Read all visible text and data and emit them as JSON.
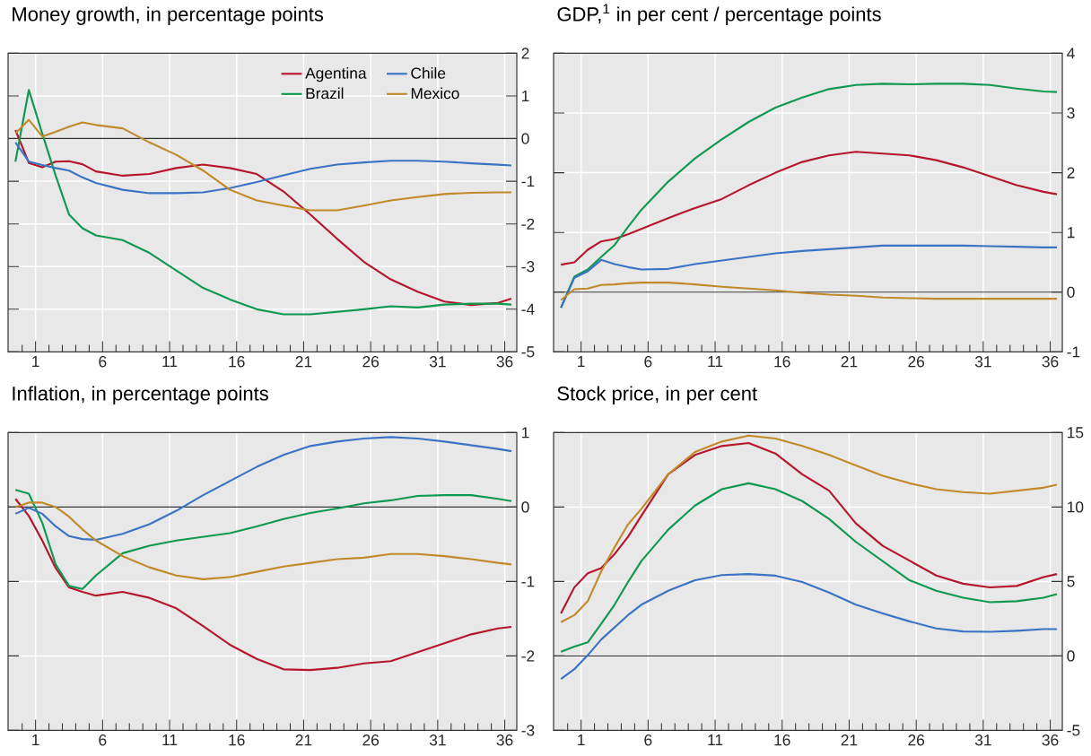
{
  "chart_data": [
    {
      "type": "line",
      "title": "Money growth, in percentage points",
      "legend": "top right",
      "grid": true,
      "x": [
        -0.5,
        0.5,
        1.5,
        2.5,
        3.5,
        4.5,
        5.5,
        7.5,
        9.5,
        11.5,
        13.5,
        15.5,
        17.5,
        19.5,
        21.5,
        23.5,
        25.5,
        27.5,
        29.5,
        31.5,
        33.5,
        35.5,
        36.5
      ],
      "xlim": [
        -1.05,
        36.9
      ],
      "ylim": [
        -5,
        2
      ],
      "yticks": [
        -5,
        -4,
        -3,
        -2,
        -1,
        0,
        1,
        2
      ],
      "xticks": [
        {
          "value": 0,
          "label": null
        },
        1,
        {
          "value": 2,
          "label": null
        },
        {
          "value": 3,
          "label": null
        },
        {
          "value": 4,
          "label": null
        },
        {
          "value": 5,
          "label": null
        },
        6,
        {
          "value": 7,
          "label": null
        },
        {
          "value": 8,
          "label": null
        },
        {
          "value": 9,
          "label": null
        },
        {
          "value": 10,
          "label": null
        },
        11,
        {
          "value": 12,
          "label": null
        },
        {
          "value": 13,
          "label": null
        },
        {
          "value": 14,
          "label": null
        },
        {
          "value": 15,
          "label": null
        },
        16,
        {
          "value": 17,
          "label": null
        },
        {
          "value": 18,
          "label": null
        },
        {
          "value": 19,
          "label": null
        },
        {
          "value": 20,
          "label": null
        },
        21,
        {
          "value": 22,
          "label": null
        },
        {
          "value": 23,
          "label": null
        },
        {
          "value": 24,
          "label": null
        },
        {
          "value": 25,
          "label": null
        },
        26,
        {
          "value": 27,
          "label": null
        },
        {
          "value": 28,
          "label": null
        },
        {
          "value": 29,
          "label": null
        },
        {
          "value": 30,
          "label": null
        },
        31,
        {
          "value": 32,
          "label": null
        },
        {
          "value": 33,
          "label": null
        },
        {
          "value": 34,
          "label": null
        },
        {
          "value": 35,
          "label": null
        },
        36
      ],
      "ref_lines": [
        {
          "axis": "y",
          "value": 0,
          "color": "#333333"
        }
      ],
      "series": [
        {
          "name": "Agentina",
          "color": "#b5162b",
          "values": [
            0.2,
            -0.57,
            -0.67,
            -0.54,
            -0.53,
            -0.6,
            -0.77,
            -0.87,
            -0.83,
            -0.69,
            -0.61,
            -0.69,
            -0.83,
            -1.24,
            -1.78,
            -2.35,
            -2.89,
            -3.3,
            -3.59,
            -3.82,
            -3.9,
            -3.85,
            -3.75
          ]
        },
        {
          "name": "Brazil",
          "color": "#0f9850",
          "values": [
            -0.54,
            1.14,
            0.12,
            -0.87,
            -1.78,
            -2.1,
            -2.27,
            -2.38,
            -2.68,
            -3.09,
            -3.5,
            -3.77,
            -4.0,
            -4.12,
            -4.12,
            -4.06,
            -4.0,
            -3.93,
            -3.96,
            -3.89,
            -3.87,
            -3.87,
            -3.89
          ]
        },
        {
          "name": "Chile",
          "color": "#3a73c4",
          "values": [
            -0.09,
            -0.54,
            -0.62,
            -0.69,
            -0.75,
            -0.91,
            -1.04,
            -1.2,
            -1.28,
            -1.28,
            -1.26,
            -1.16,
            -1.02,
            -0.86,
            -0.71,
            -0.61,
            -0.56,
            -0.52,
            -0.52,
            -0.54,
            -0.58,
            -0.61,
            -0.63
          ]
        },
        {
          "name": "Mexico",
          "color": "#c08a2a",
          "values": [
            0.12,
            0.44,
            0.05,
            0.16,
            0.28,
            0.38,
            0.32,
            0.24,
            -0.09,
            -0.38,
            -0.75,
            -1.2,
            -1.45,
            -1.57,
            -1.68,
            -1.68,
            -1.57,
            -1.45,
            -1.37,
            -1.3,
            -1.27,
            -1.26,
            -1.26
          ]
        }
      ]
    },
    {
      "type": "line",
      "title": "GDP,$^{1}$ in per cent / percentage points",
      "grid": true,
      "x": [
        -0.5,
        0.5,
        1.5,
        2.5,
        3.5,
        4.5,
        5.5,
        7.5,
        9.5,
        11.5,
        13.5,
        15.5,
        17.5,
        19.5,
        21.5,
        23.5,
        25.5,
        27.5,
        29.5,
        31.5,
        33.5,
        35.5,
        36.5
      ],
      "xlim": [
        -1.05,
        36.9
      ],
      "ylim": [
        -1,
        4
      ],
      "yticks": [
        -1,
        0,
        1,
        2,
        3,
        4
      ],
      "xticks": [
        {
          "value": 0,
          "label": null
        },
        1,
        {
          "value": 2,
          "label": null
        },
        {
          "value": 3,
          "label": null
        },
        {
          "value": 4,
          "label": null
        },
        {
          "value": 5,
          "label": null
        },
        6,
        {
          "value": 7,
          "label": null
        },
        {
          "value": 8,
          "label": null
        },
        {
          "value": 9,
          "label": null
        },
        {
          "value": 10,
          "label": null
        },
        11,
        {
          "value": 12,
          "label": null
        },
        {
          "value": 13,
          "label": null
        },
        {
          "value": 14,
          "label": null
        },
        {
          "value": 15,
          "label": null
        },
        16,
        {
          "value": 17,
          "label": null
        },
        {
          "value": 18,
          "label": null
        },
        {
          "value": 19,
          "label": null
        },
        {
          "value": 20,
          "label": null
        },
        21,
        {
          "value": 22,
          "label": null
        },
        {
          "value": 23,
          "label": null
        },
        {
          "value": 24,
          "label": null
        },
        {
          "value": 25,
          "label": null
        },
        26,
        {
          "value": 27,
          "label": null
        },
        {
          "value": 28,
          "label": null
        },
        {
          "value": 29,
          "label": null
        },
        {
          "value": 30,
          "label": null
        },
        31,
        {
          "value": 32,
          "label": null
        },
        {
          "value": 33,
          "label": null
        },
        {
          "value": 34,
          "label": null
        },
        {
          "value": 35,
          "label": null
        },
        36
      ],
      "ref_lines": [
        {
          "axis": "y",
          "value": 0,
          "color": "#333333"
        }
      ],
      "series": [
        {
          "color": "#b5162b",
          "values": [
            0.46,
            0.5,
            0.71,
            0.85,
            0.89,
            0.97,
            1.06,
            1.24,
            1.41,
            1.56,
            1.79,
            2.0,
            2.18,
            2.29,
            2.35,
            2.32,
            2.29,
            2.21,
            2.09,
            1.94,
            1.79,
            1.68,
            1.64
          ]
        },
        {
          "color": "#0f9850",
          "values": [
            -0.26,
            0.26,
            0.38,
            0.59,
            0.79,
            1.09,
            1.38,
            1.85,
            2.24,
            2.56,
            2.85,
            3.09,
            3.26,
            3.4,
            3.47,
            3.49,
            3.48,
            3.49,
            3.49,
            3.47,
            3.41,
            3.36,
            3.35
          ]
        },
        {
          "color": "#3a73c4",
          "values": [
            -0.26,
            0.24,
            0.35,
            0.54,
            0.47,
            0.42,
            0.38,
            0.39,
            0.47,
            0.53,
            0.59,
            0.65,
            0.69,
            0.72,
            0.75,
            0.78,
            0.78,
            0.78,
            0.78,
            0.77,
            0.76,
            0.75,
            0.75
          ]
        },
        {
          "color": "#c08a2a",
          "values": [
            -0.13,
            0.05,
            0.06,
            0.12,
            0.13,
            0.15,
            0.16,
            0.16,
            0.13,
            0.09,
            0.06,
            0.03,
            -0.01,
            -0.04,
            -0.06,
            -0.09,
            -0.1,
            -0.11,
            -0.11,
            -0.11,
            -0.11,
            -0.11,
            -0.11
          ]
        }
      ]
    },
    {
      "type": "line",
      "title": "Inflation, in percentage points",
      "grid": true,
      "x": [
        -0.5,
        0.5,
        1.5,
        2.5,
        3.5,
        4.5,
        5.5,
        7.5,
        9.5,
        11.5,
        13.5,
        15.5,
        17.5,
        19.5,
        21.5,
        23.5,
        25.5,
        27.5,
        29.5,
        31.5,
        33.5,
        35.5,
        36.5
      ],
      "xlim": [
        -1.05,
        36.9
      ],
      "ylim": [
        -3,
        1
      ],
      "yticks": [
        -3,
        -2,
        -1,
        0,
        1
      ],
      "xticks": [
        {
          "value": 0,
          "label": null
        },
        1,
        {
          "value": 2,
          "label": null
        },
        {
          "value": 3,
          "label": null
        },
        {
          "value": 4,
          "label": null
        },
        {
          "value": 5,
          "label": null
        },
        6,
        {
          "value": 7,
          "label": null
        },
        {
          "value": 8,
          "label": null
        },
        {
          "value": 9,
          "label": null
        },
        {
          "value": 10,
          "label": null
        },
        11,
        {
          "value": 12,
          "label": null
        },
        {
          "value": 13,
          "label": null
        },
        {
          "value": 14,
          "label": null
        },
        {
          "value": 15,
          "label": null
        },
        16,
        {
          "value": 17,
          "label": null
        },
        {
          "value": 18,
          "label": null
        },
        {
          "value": 19,
          "label": null
        },
        {
          "value": 20,
          "label": null
        },
        21,
        {
          "value": 22,
          "label": null
        },
        {
          "value": 23,
          "label": null
        },
        {
          "value": 24,
          "label": null
        },
        {
          "value": 25,
          "label": null
        },
        26,
        {
          "value": 27,
          "label": null
        },
        {
          "value": 28,
          "label": null
        },
        {
          "value": 29,
          "label": null
        },
        {
          "value": 30,
          "label": null
        },
        31,
        {
          "value": 32,
          "label": null
        },
        {
          "value": 33,
          "label": null
        },
        {
          "value": 34,
          "label": null
        },
        {
          "value": 35,
          "label": null
        },
        36
      ],
      "ref_lines": [
        {
          "axis": "y",
          "value": 0,
          "color": "#333333"
        }
      ],
      "series": [
        {
          "color": "#b5162b",
          "values": [
            0.11,
            -0.12,
            -0.45,
            -0.82,
            -1.08,
            -1.14,
            -1.19,
            -1.14,
            -1.22,
            -1.36,
            -1.6,
            -1.85,
            -2.04,
            -2.18,
            -2.19,
            -2.16,
            -2.1,
            -2.07,
            -1.95,
            -1.83,
            -1.71,
            -1.63,
            -1.61
          ]
        },
        {
          "color": "#0f9850",
          "values": [
            0.23,
            0.18,
            -0.21,
            -0.77,
            -1.06,
            -1.1,
            -0.92,
            -0.62,
            -0.52,
            -0.45,
            -0.4,
            -0.35,
            -0.26,
            -0.16,
            -0.08,
            -0.02,
            0.05,
            0.09,
            0.15,
            0.16,
            0.16,
            0.11,
            0.08
          ]
        },
        {
          "color": "#3a73c4",
          "values": [
            -0.09,
            -0.01,
            -0.09,
            -0.26,
            -0.39,
            -0.43,
            -0.44,
            -0.36,
            -0.23,
            -0.05,
            0.16,
            0.35,
            0.54,
            0.7,
            0.82,
            0.88,
            0.92,
            0.94,
            0.92,
            0.88,
            0.83,
            0.78,
            0.75
          ]
        },
        {
          "color": "#c08a2a",
          "values": [
            0.0,
            0.06,
            0.06,
            0.0,
            -0.13,
            -0.3,
            -0.45,
            -0.66,
            -0.81,
            -0.92,
            -0.97,
            -0.94,
            -0.87,
            -0.8,
            -0.75,
            -0.7,
            -0.68,
            -0.63,
            -0.63,
            -0.66,
            -0.7,
            -0.75,
            -0.77
          ]
        }
      ]
    },
    {
      "type": "line",
      "title": "Stock price, in per cent",
      "grid": true,
      "x": [
        -0.5,
        0.5,
        1.5,
        2.5,
        3.5,
        4.5,
        5.5,
        7.5,
        9.5,
        11.5,
        13.5,
        15.5,
        17.5,
        19.5,
        21.5,
        23.5,
        25.5,
        27.5,
        29.5,
        31.5,
        33.5,
        35.5,
        36.5
      ],
      "xlim": [
        -1.05,
        36.9
      ],
      "ylim": [
        -5,
        15
      ],
      "yticks": [
        -5,
        0,
        5,
        10,
        15
      ],
      "xticks": [
        {
          "value": 0,
          "label": null
        },
        1,
        {
          "value": 2,
          "label": null
        },
        {
          "value": 3,
          "label": null
        },
        {
          "value": 4,
          "label": null
        },
        {
          "value": 5,
          "label": null
        },
        6,
        {
          "value": 7,
          "label": null
        },
        {
          "value": 8,
          "label": null
        },
        {
          "value": 9,
          "label": null
        },
        {
          "value": 10,
          "label": null
        },
        11,
        {
          "value": 12,
          "label": null
        },
        {
          "value": 13,
          "label": null
        },
        {
          "value": 14,
          "label": null
        },
        {
          "value": 15,
          "label": null
        },
        16,
        {
          "value": 17,
          "label": null
        },
        {
          "value": 18,
          "label": null
        },
        {
          "value": 19,
          "label": null
        },
        {
          "value": 20,
          "label": null
        },
        21,
        {
          "value": 22,
          "label": null
        },
        {
          "value": 23,
          "label": null
        },
        {
          "value": 24,
          "label": null
        },
        {
          "value": 25,
          "label": null
        },
        26,
        {
          "value": 27,
          "label": null
        },
        {
          "value": 28,
          "label": null
        },
        {
          "value": 29,
          "label": null
        },
        {
          "value": 30,
          "label": null
        },
        31,
        {
          "value": 32,
          "label": null
        },
        {
          "value": 33,
          "label": null
        },
        {
          "value": 34,
          "label": null
        },
        {
          "value": 35,
          "label": null
        },
        36
      ],
      "ref_lines": [
        {
          "axis": "y",
          "value": 0,
          "color": "#333333"
        }
      ],
      "series": [
        {
          "color": "#b5162b",
          "values": [
            2.86,
            4.61,
            5.55,
            5.9,
            6.84,
            8.0,
            9.41,
            12.2,
            13.5,
            14.1,
            14.3,
            13.6,
            12.2,
            11.1,
            8.9,
            7.4,
            6.4,
            5.4,
            4.85,
            4.6,
            4.7,
            5.3,
            5.5
          ]
        },
        {
          "color": "#0f9850",
          "values": [
            0.28,
            0.63,
            0.91,
            2.15,
            3.44,
            4.96,
            6.37,
            8.48,
            10.1,
            11.2,
            11.6,
            11.2,
            10.4,
            9.2,
            7.66,
            6.37,
            5.08,
            4.38,
            3.91,
            3.61,
            3.68,
            3.91,
            4.15
          ]
        },
        {
          "color": "#3a73c4",
          "values": [
            -1.55,
            -0.89,
            0.05,
            1.1,
            1.92,
            2.74,
            3.44,
            4.38,
            5.08,
            5.43,
            5.5,
            5.39,
            4.96,
            4.26,
            3.44,
            2.86,
            2.32,
            1.85,
            1.64,
            1.62,
            1.69,
            1.8,
            1.8
          ]
        },
        {
          "color": "#c08a2a",
          "values": [
            2.27,
            2.74,
            3.68,
            5.67,
            7.3,
            8.83,
            9.88,
            12.2,
            13.7,
            14.4,
            14.8,
            14.6,
            14.1,
            13.5,
            12.8,
            12.1,
            11.6,
            11.2,
            11.0,
            10.9,
            11.1,
            11.3,
            11.5
          ]
        }
      ]
    }
  ]
}
